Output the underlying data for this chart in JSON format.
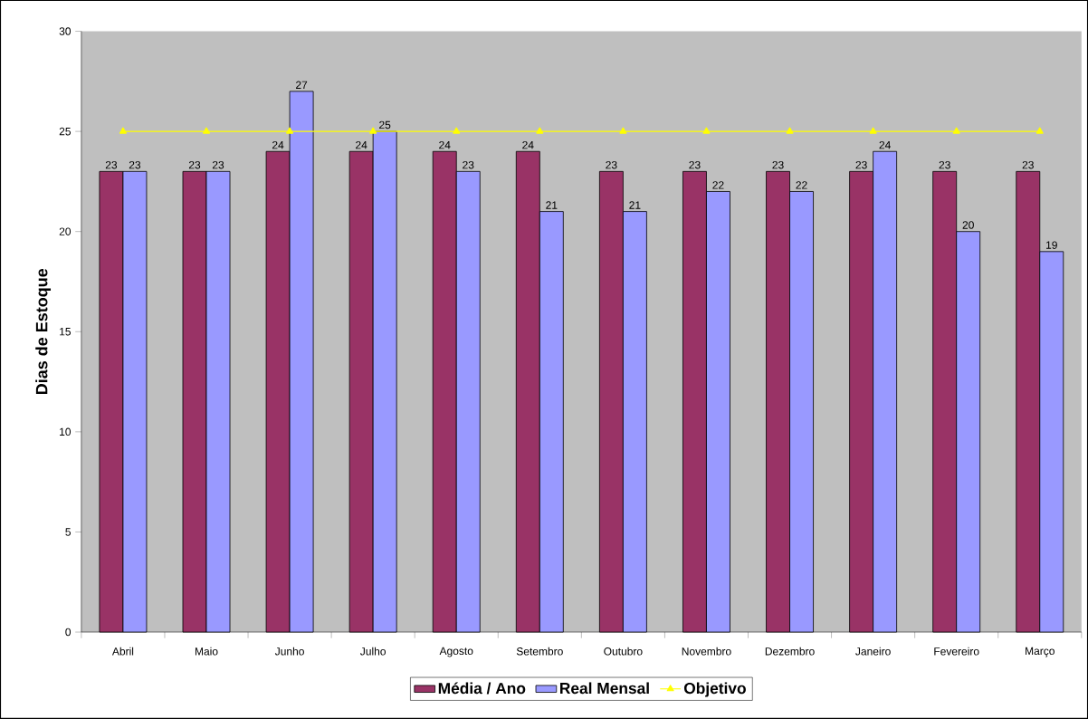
{
  "chart_data": {
    "type": "bar",
    "ylabel": "Dias de Estoque",
    "categories": [
      "Abril",
      "Maio",
      "Junho",
      "Julho",
      "Agosto",
      "Setembro",
      "Outubro",
      "Novembro",
      "Dezembro",
      "Janeiro",
      "Fevereiro",
      "Março"
    ],
    "series": [
      {
        "name": "Média / Ano",
        "color": "#993366",
        "data_labels": true,
        "values": [
          23,
          23,
          24,
          24,
          24,
          24,
          23,
          23,
          23,
          23,
          23,
          23
        ]
      },
      {
        "name": "Real Mensal",
        "color": "#9999ff",
        "data_labels": true,
        "values": [
          23,
          23,
          27,
          25,
          23,
          21,
          21,
          22,
          22,
          24,
          20,
          19
        ]
      },
      {
        "name": "Objetivo",
        "type": "line",
        "marker": "triangle",
        "color": "#ffff00",
        "values": [
          25,
          25,
          25,
          25,
          25,
          25,
          25,
          25,
          25,
          25,
          25,
          25
        ]
      }
    ],
    "ylim": [
      0,
      30
    ],
    "yticks": [
      0,
      5,
      10,
      15,
      20,
      25,
      30
    ],
    "grid": false,
    "legend": "bottom"
  }
}
